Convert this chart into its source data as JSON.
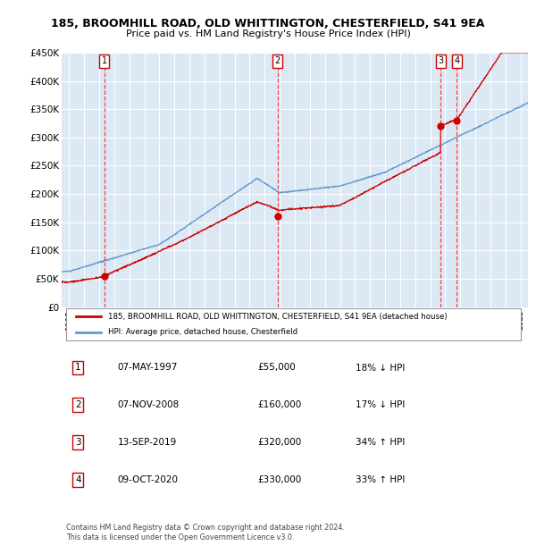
{
  "title1": "185, BROOMHILL ROAD, OLD WHITTINGTON, CHESTERFIELD, S41 9EA",
  "title2": "Price paid vs. HM Land Registry's House Price Index (HPI)",
  "ylim": [
    0,
    450000
  ],
  "yticks": [
    0,
    50000,
    100000,
    150000,
    200000,
    250000,
    300000,
    350000,
    400000,
    450000
  ],
  "ytick_labels": [
    "£0",
    "£50K",
    "£100K",
    "£150K",
    "£200K",
    "£250K",
    "£300K",
    "£350K",
    "£400K",
    "£450K"
  ],
  "plot_bg": "#dce9f5",
  "grid_color": "#ffffff",
  "line_color_red": "#cc0000",
  "line_color_blue": "#6699cc",
  "sale_dates": [
    1997.35,
    2008.85,
    2019.7,
    2020.77
  ],
  "sale_prices": [
    55000,
    160000,
    320000,
    330000
  ],
  "sale_labels": [
    "1",
    "2",
    "3",
    "4"
  ],
  "legend_label_red": "185, BROOMHILL ROAD, OLD WHITTINGTON, CHESTERFIELD, S41 9EA (detached house)",
  "legend_label_blue": "HPI: Average price, detached house, Chesterfield",
  "table_rows": [
    {
      "num": "1",
      "date": "07-MAY-1997",
      "price": "£55,000",
      "hpi": "18% ↓ HPI"
    },
    {
      "num": "2",
      "date": "07-NOV-2008",
      "price": "£160,000",
      "hpi": "17% ↓ HPI"
    },
    {
      "num": "3",
      "date": "13-SEP-2019",
      "price": "£320,000",
      "hpi": "34% ↑ HPI"
    },
    {
      "num": "4",
      "date": "09-OCT-2020",
      "price": "£330,000",
      "hpi": "33% ↑ HPI"
    }
  ],
  "footnote": "Contains HM Land Registry data © Crown copyright and database right 2024.\nThis data is licensed under the Open Government Licence v3.0.",
  "xmin": 1994.5,
  "xmax": 2025.5
}
